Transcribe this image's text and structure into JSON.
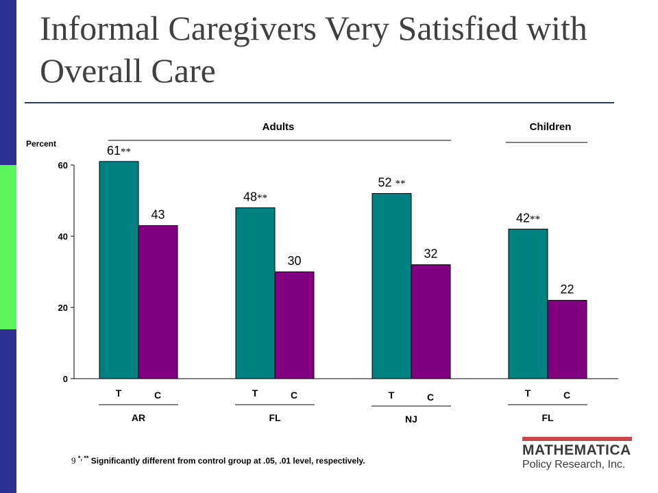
{
  "slide": {
    "title": "Informal Caregivers Very Satisfied with Overall Care",
    "page_number": "9",
    "footnote_stars": "*, **",
    "footnote_text": " Significantly different from control group at  .05,  .01 level, respectively."
  },
  "logo": {
    "name": "MATHEMATICA",
    "tagline": "Policy Research, Inc."
  },
  "colors": {
    "treatment": "#008080",
    "control": "#800080",
    "sidebar": "#2e3192",
    "sidebar_accent": "#5cf25c"
  },
  "chart_data": {
    "type": "bar",
    "ylabel": "Percent",
    "ylim": [
      0,
      60
    ],
    "yticks": [
      0,
      20,
      40,
      60
    ],
    "grid": false,
    "groups": [
      {
        "state": "AR",
        "population": "Adults",
        "categories": [
          "T",
          "C"
        ],
        "values": [
          61,
          43
        ],
        "labels": [
          "61",
          "43"
        ],
        "significance": [
          "**",
          ""
        ]
      },
      {
        "state": "FL",
        "population": "Adults",
        "categories": [
          "T",
          "C"
        ],
        "values": [
          48,
          30
        ],
        "labels": [
          "48",
          "30"
        ],
        "significance": [
          "**",
          ""
        ]
      },
      {
        "state": "NJ",
        "population": "Adults",
        "categories": [
          "T",
          "C"
        ],
        "values": [
          52,
          32
        ],
        "labels": [
          "52 ",
          "32"
        ],
        "significance": [
          "**",
          ""
        ]
      },
      {
        "state": "FL",
        "population": "Children",
        "categories": [
          "T",
          "C"
        ],
        "values": [
          42,
          22
        ],
        "labels": [
          "42",
          "22"
        ],
        "significance": [
          "**",
          ""
        ]
      }
    ],
    "population_labels": [
      "Adults",
      "Children"
    ]
  }
}
